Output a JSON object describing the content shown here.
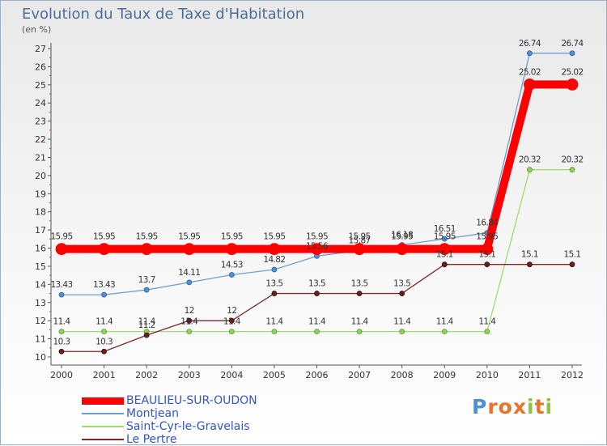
{
  "title": "Evolution du Taux de Taxe d'Habitation",
  "subtitle": "(en %)",
  "logo": {
    "text": [
      "P",
      "r",
      "o",
      "x",
      "i",
      "t",
      "i"
    ],
    "colors": [
      "#4f8fd6",
      "#e8742a",
      "#e8742a",
      "#e8742a",
      "#8cc63f",
      "#e8742a",
      "#8cc63f"
    ]
  },
  "chart_data": {
    "type": "line",
    "title": "Evolution du Taux de Taxe d'Habitation",
    "ylabel": "(en %)",
    "xlabel": "",
    "ylim": [
      10,
      27
    ],
    "yticks": [
      "10",
      "11",
      "12",
      "13",
      "14",
      "15",
      "16",
      "17",
      "18",
      "19",
      "20",
      "21",
      "22",
      "23",
      "24",
      "25",
      "26",
      "27"
    ],
    "categories": [
      "2000",
      "2001",
      "2002",
      "2003",
      "2004",
      "2005",
      "2006",
      "2007",
      "2008",
      "2009",
      "2010",
      "2011",
      "2012"
    ],
    "legend_position": "bottom-left",
    "grid": false,
    "series": [
      {
        "name": "BEAULIEU-SUR-OUDON",
        "color": "#ff0000",
        "values": [
          15.95,
          15.95,
          15.95,
          15.95,
          15.95,
          15.95,
          15.95,
          15.95,
          15.95,
          15.95,
          15.95,
          25.02,
          25.02
        ],
        "labels": [
          "15.95",
          "15.95",
          "15.95",
          "15.95",
          "15.95",
          "15.95",
          "15.95",
          "15.95",
          "15.95",
          "15.95",
          "15.95",
          "25.02",
          "25.02"
        ]
      },
      {
        "name": "Montjean",
        "color": "#6f9ed3",
        "values": [
          13.43,
          13.43,
          13.7,
          14.11,
          14.53,
          14.82,
          15.56,
          15.87,
          16.18,
          16.51,
          16.84,
          26.74,
          26.74
        ],
        "labels": [
          "13.43",
          "13.43",
          "13.7",
          "14.11",
          "14.53",
          "14.82",
          "15.56",
          "15.87",
          "16.18",
          "16.51",
          "16.84",
          "26.74",
          "26.74"
        ]
      },
      {
        "name": "Saint-Cyr-le-Gravelais",
        "color": "#9cdc72",
        "values": [
          11.4,
          11.4,
          11.4,
          11.4,
          11.4,
          11.4,
          11.4,
          11.4,
          11.4,
          11.4,
          11.4,
          20.32,
          20.32
        ],
        "labels": [
          "11.4",
          "11.4",
          "11.4",
          "11.4",
          "11.4",
          "11.4",
          "11.4",
          "11.4",
          "11.4",
          "11.4",
          "11.4",
          "20.32",
          "20.32"
        ]
      },
      {
        "name": "Le Pertre",
        "color": "#7a2a2a",
        "values": [
          10.3,
          10.3,
          11.2,
          12,
          12,
          13.5,
          13.5,
          13.5,
          13.5,
          15.1,
          15.1,
          15.1,
          15.1
        ],
        "labels": [
          "10.3",
          "10.3",
          "11.2",
          "12",
          "12",
          "13.5",
          "13.5",
          "13.5",
          "13.5",
          "15.1",
          "15.1",
          "15.1",
          "15.1"
        ]
      }
    ]
  }
}
